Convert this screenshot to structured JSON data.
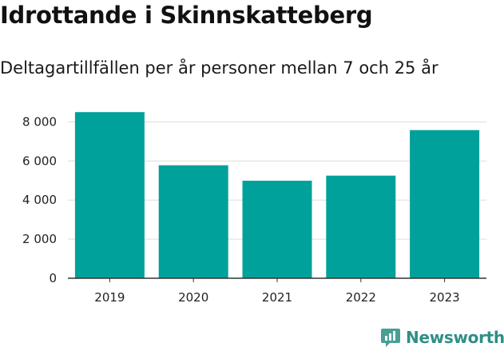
{
  "title": "Idrottande i Skinnskatteberg",
  "subtitle": "Deltagartillfällen per år personer mellan 7 och 25 år",
  "brand": {
    "name": "Newsworthy",
    "color": "#2f8f86",
    "icon": "newsworthy-logo-icon"
  },
  "colors": {
    "bar": "#00a19a",
    "grid": "#dddddd",
    "axis": "#333333"
  },
  "chart_data": {
    "type": "bar",
    "title": "Idrottande i Skinnskatteberg",
    "subtitle": "Deltagartillfällen per år personer mellan 7 och 25 år",
    "categories": [
      "2019",
      "2020",
      "2021",
      "2022",
      "2023"
    ],
    "values": [
      8500,
      5780,
      4990,
      5250,
      7580
    ],
    "ylim": [
      0,
      9000
    ],
    "yticks": [
      0,
      2000,
      4000,
      6000,
      8000
    ],
    "ytick_labels": [
      "0",
      "2 000",
      "4 000",
      "6 000",
      "8 000"
    ],
    "grid": true,
    "xlabel": "",
    "ylabel": ""
  }
}
